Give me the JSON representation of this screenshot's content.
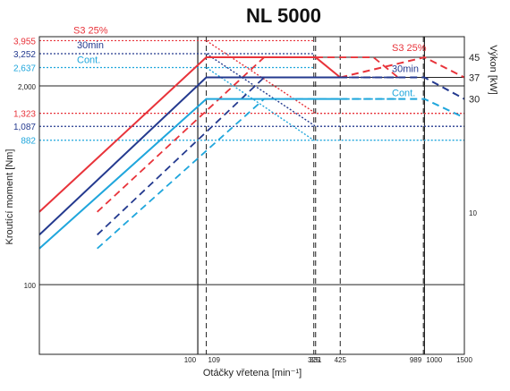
{
  "chart_data": {
    "type": "line",
    "title": "NL 5000",
    "xlabel": "Otáčky vřetena [min⁻¹]",
    "ylabel_left": "Kroutící moment [Nm]",
    "ylabel_right": "Výkon [kW]",
    "x_scale": "log",
    "y_scale": "log",
    "x_ticks": [
      "100",
      "109",
      "325",
      "331",
      "425",
      "989",
      "1000",
      "1500"
    ],
    "left_ticks": [
      "3,955",
      "3,252",
      "2,637",
      "2,000",
      "1,323",
      "1,087",
      "882",
      "100"
    ],
    "right_ticks": [
      "45",
      "37",
      "30",
      "10"
    ],
    "legend": [
      "S3 25%",
      "30min",
      "Cont."
    ],
    "colors": {
      "s3": "#e8333a",
      "min30": "#243a8f",
      "cont": "#1fa6dc",
      "axis": "#222222"
    },
    "torque_series": [
      {
        "name": "S3 25%",
        "color": "s3",
        "points": [
          [
            20,
            3955
          ],
          [
            109,
            3955
          ],
          [
            331,
            1323
          ],
          [
            425,
            1323
          ],
          [
            1000,
            1323
          ],
          [
            1500,
            1323
          ]
        ]
      },
      {
        "name": "30min",
        "color": "min30",
        "points": [
          [
            20,
            3252
          ],
          [
            109,
            3252
          ],
          [
            331,
            1087
          ],
          [
            425,
            1087
          ],
          [
            1000,
            1087
          ],
          [
            1500,
            1087
          ]
        ]
      },
      {
        "name": "Cont.",
        "color": "cont",
        "points": [
          [
            20,
            2637
          ],
          [
            109,
            2637
          ],
          [
            325,
            882
          ],
          [
            425,
            882
          ],
          [
            1000,
            882
          ],
          [
            1500,
            882
          ]
        ]
      }
    ],
    "power_series": [
      {
        "name": "S3 25%",
        "color": "s3",
        "points": [
          [
            20,
            10
          ],
          [
            109,
            45
          ],
          [
            325,
            45
          ],
          [
            331,
            45
          ],
          [
            425,
            37
          ],
          [
            1000,
            45
          ],
          [
            1500,
            37
          ]
        ]
      },
      {
        "name": "30min",
        "color": "min30",
        "points": [
          [
            20,
            8
          ],
          [
            109,
            37
          ],
          [
            325,
            37
          ],
          [
            425,
            37
          ],
          [
            1000,
            37
          ],
          [
            1500,
            30
          ]
        ]
      },
      {
        "name": "Cont.",
        "color": "cont",
        "points": [
          [
            20,
            7
          ],
          [
            109,
            30
          ],
          [
            325,
            30
          ],
          [
            425,
            30
          ],
          [
            1000,
            30
          ],
          [
            1500,
            25
          ]
        ]
      }
    ]
  }
}
